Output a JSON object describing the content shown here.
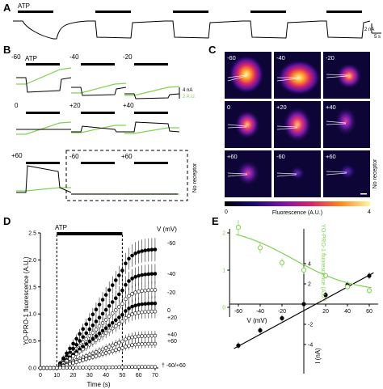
{
  "panels": {
    "A": {
      "letter": "A",
      "atp_label": "ATP",
      "scale_nA": "2 nA",
      "scale_s": "5 s"
    },
    "B": {
      "letter": "B",
      "atp_label": "ATP",
      "voltages": [
        "-60",
        "-40",
        "-20",
        "0",
        "+20",
        "+40",
        "+60",
        "-60",
        "+60"
      ],
      "scale_nA": "4 nA",
      "scale_au": "2 A.U.",
      "no_receptor": "No receptor"
    },
    "C": {
      "letter": "C",
      "voltages": [
        "-60",
        "-40",
        "-20",
        "0",
        "+20",
        "+40",
        "+60",
        "-60",
        "+60"
      ],
      "no_receptor": "No receptor",
      "colorbar_min": "0",
      "colorbar_max": "4",
      "colorbar_label": "Fluorescence (A.U.)"
    },
    "D": {
      "letter": "D",
      "atp_label": "ATP",
      "voltage_header": "V (mV)",
      "series_labels": [
        "-60",
        "-40",
        "-20",
        "0",
        "+20",
        "+40",
        "+60",
        "-60/+60"
      ],
      "xlabel": "Time (s)",
      "ylabel": "YO-PRO-1 fluorescence (A.U.)",
      "xticks": [
        "0",
        "10",
        "20",
        "30",
        "40",
        "50",
        "60",
        "70"
      ],
      "yticks": [
        "0.0",
        "0.5",
        "1.0",
        "1.5",
        "2.0",
        "2.5"
      ]
    },
    "E": {
      "letter": "E",
      "xlabel": "V (mV)",
      "ylabel_right": "I (nA)",
      "ylabel_left": "YO-PRO-1 fluorescence (A.U.)",
      "xticks": [
        "-60",
        "-40",
        "-20",
        "20",
        "40",
        "60"
      ],
      "yticks_left": [
        "0",
        "1",
        "2"
      ],
      "yticks_right": [
        "-4",
        "-2",
        "2",
        "4"
      ]
    }
  },
  "chart_data": [
    {
      "type": "scatter",
      "panel": "D",
      "xlabel": "Time (s)",
      "ylabel": "YO-PRO-1 fluorescence (A.U.)",
      "xlim": [
        0,
        72
      ],
      "ylim": [
        0,
        2.5
      ],
      "atp_window": [
        10,
        50
      ],
      "series": [
        {
          "name": "-60",
          "plateau": 2.2,
          "filled": true
        },
        {
          "name": "-40",
          "plateau": 1.75,
          "filled": true
        },
        {
          "name": "-20",
          "plateau": 1.45,
          "filled": false
        },
        {
          "name": "0",
          "plateau": 1.2,
          "filled": true
        },
        {
          "name": "+20",
          "plateau": 1.05,
          "filled": false
        },
        {
          "name": "+40",
          "plateau": 0.6,
          "filled": false
        },
        {
          "name": "+60",
          "plateau": 0.45,
          "filled": false
        },
        {
          "name": "-60/+60",
          "plateau": 0.02,
          "filled": false
        }
      ]
    },
    {
      "type": "scatter",
      "panel": "E",
      "xlabel": "V (mV)",
      "x": [
        -60,
        -40,
        -20,
        0,
        20,
        40,
        60
      ],
      "current_nA": [
        -4.1,
        -2.6,
        -1.4,
        0,
        0.9,
        1.9,
        2.8
      ],
      "fluorescence": [
        2.15,
        1.6,
        1.2,
        1.0,
        0.85,
        0.55,
        0.45
      ],
      "fluorescence_err": [
        0.2,
        0.15,
        0.12,
        0.1,
        0.08,
        0.06,
        0.08
      ]
    }
  ]
}
